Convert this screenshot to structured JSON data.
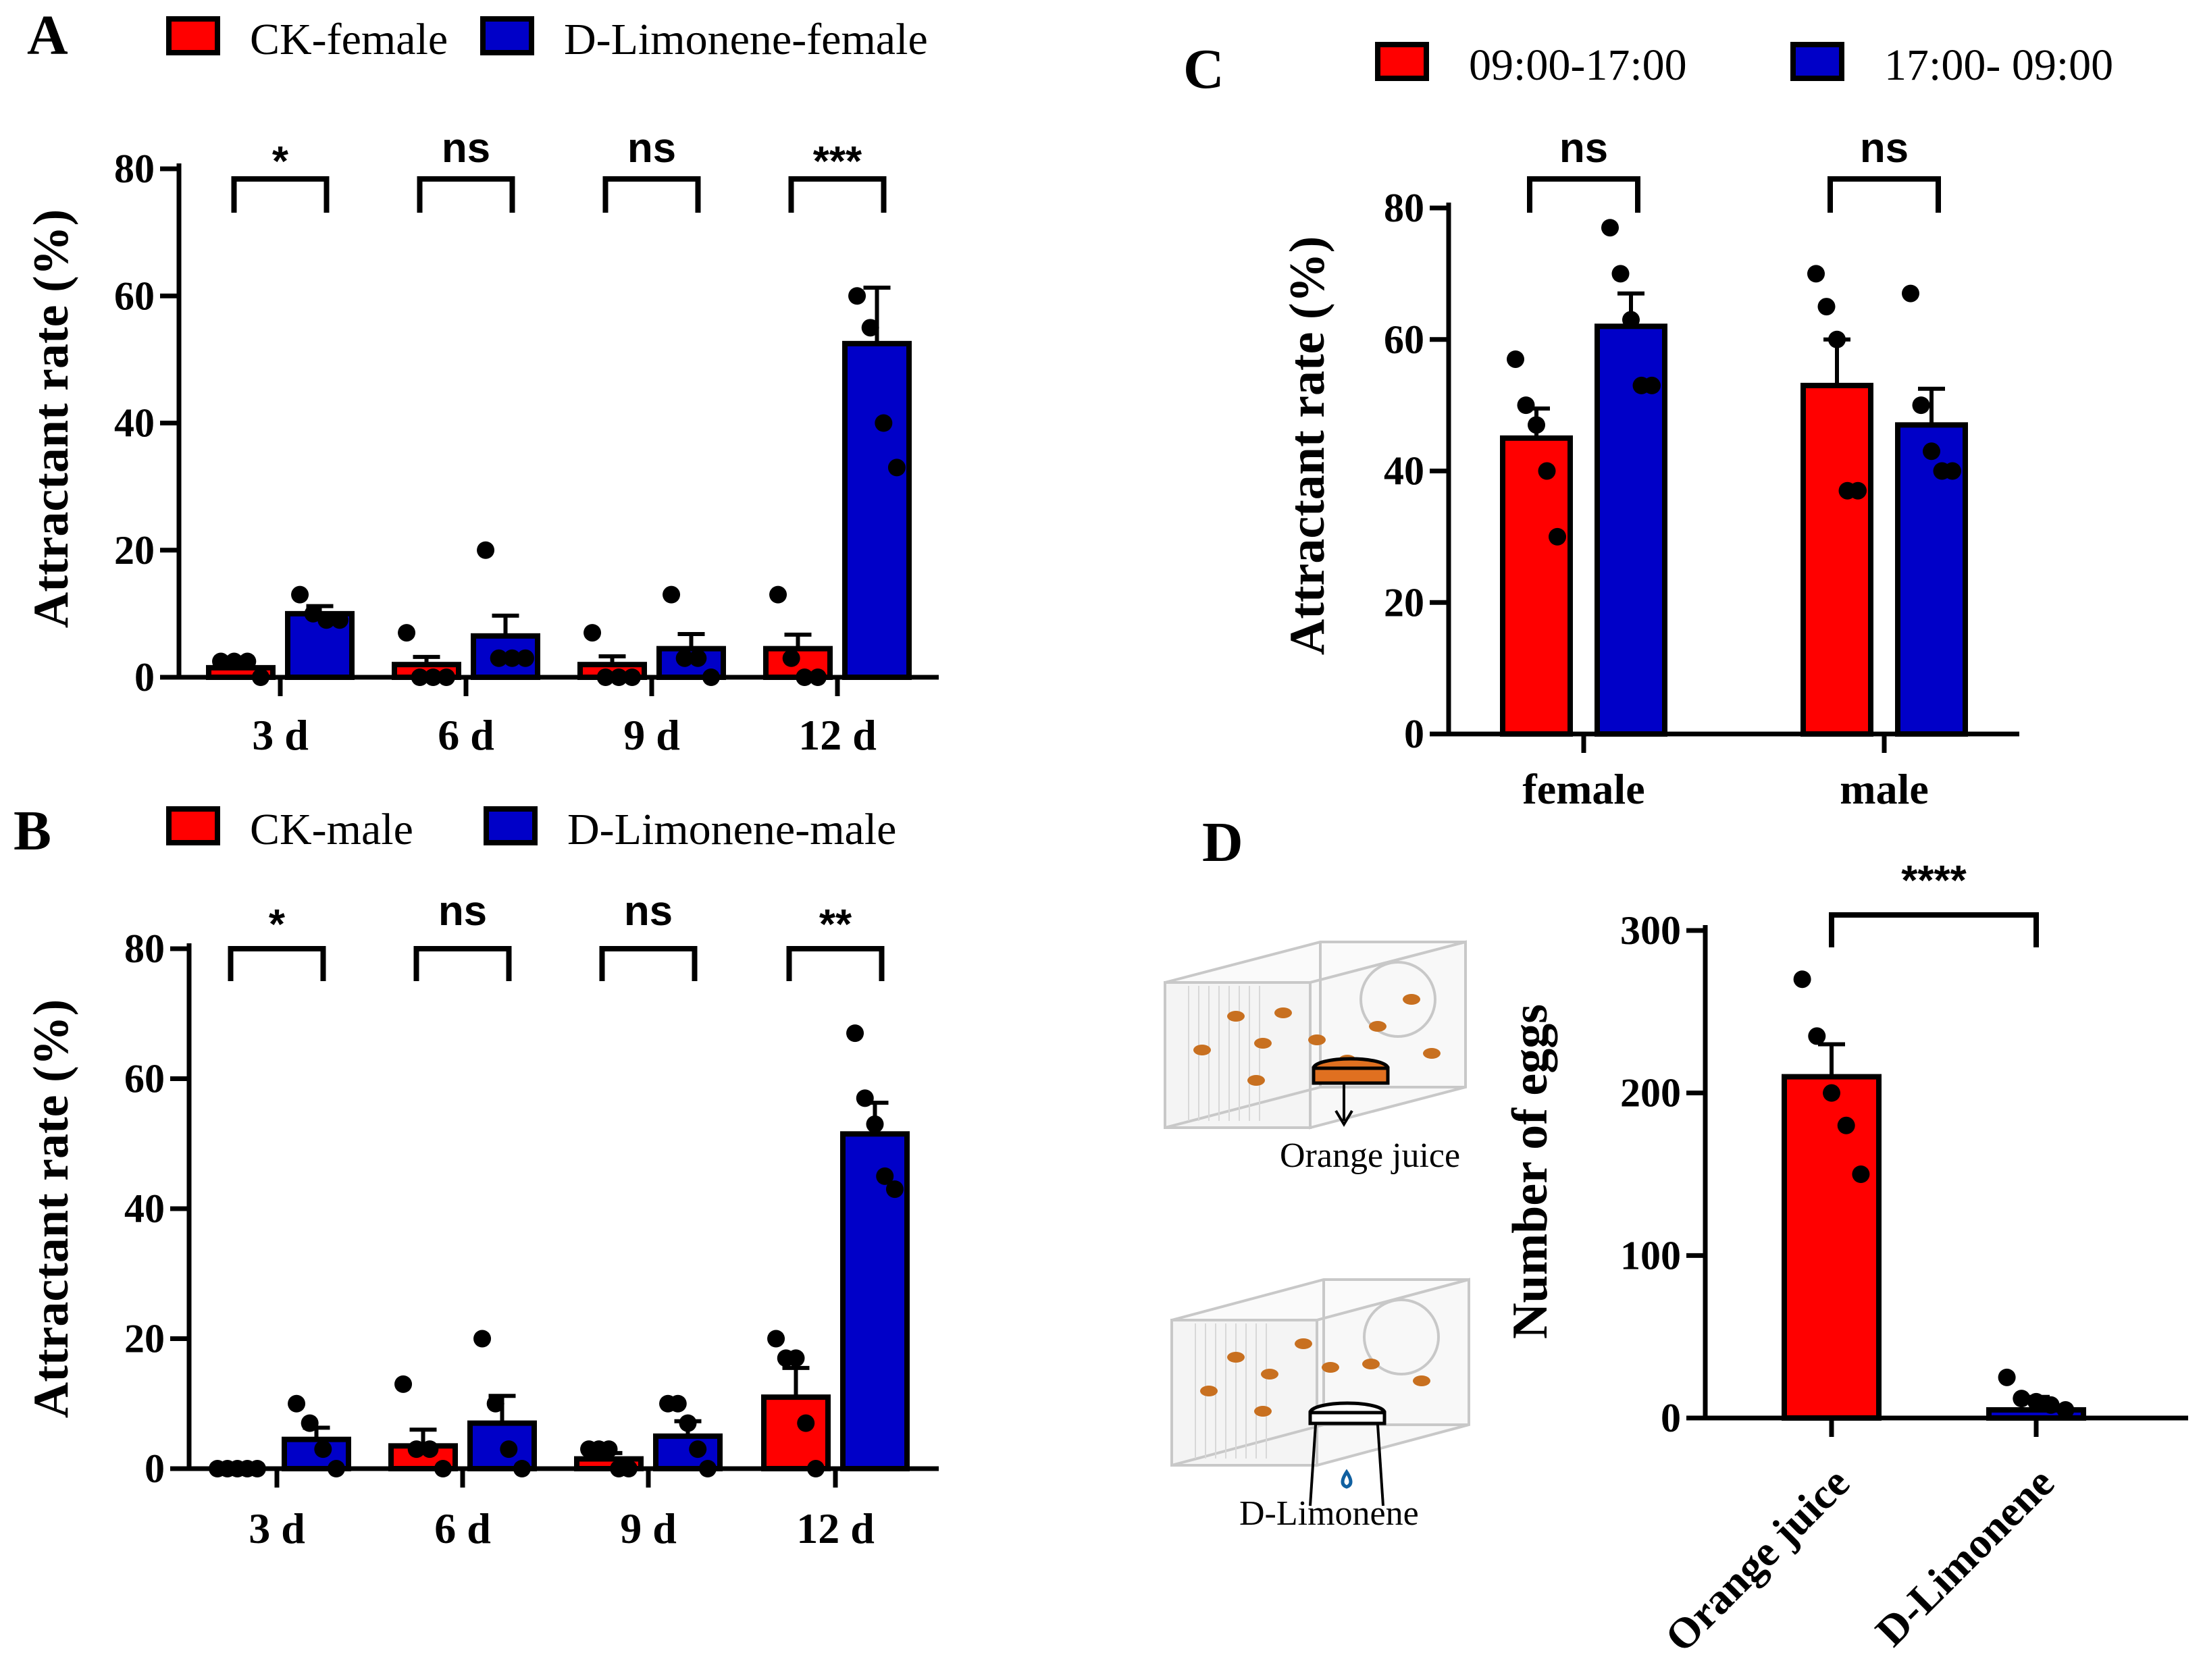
{
  "colors": {
    "red": "#ff0000",
    "blue": "#0000c8",
    "black": "#000000",
    "dot": "#000000"
  },
  "chart_data": [
    {
      "panel": "A",
      "type": "bar",
      "ylabel": "Attractant rate (%)",
      "ylim": [
        0,
        80
      ],
      "yticks": [
        "0",
        "20",
        "40",
        "60",
        "80"
      ],
      "categories": [
        "3 d",
        "6 d",
        "9 d",
        "12 d"
      ],
      "legend": [
        "CK-female",
        "D-Limonene-female"
      ],
      "significance": [
        "*",
        "ns",
        "ns",
        "***"
      ],
      "series": [
        {
          "name": "CK-female",
          "values": [
            1.5,
            2,
            2,
            4.5
          ],
          "errors": [
            0.7,
            1.2,
            1.3,
            2.2
          ],
          "points": [
            [
              2.5,
              2.5,
              2.5,
              0
            ],
            [
              7,
              0,
              0,
              0
            ],
            [
              7,
              0,
              0,
              0
            ],
            [
              13,
              3,
              0,
              0
            ]
          ]
        },
        {
          "name": "D-Limonene-female",
          "values": [
            10,
            6.5,
            4.5,
            52.5
          ],
          "errors": [
            1.2,
            3.2,
            2.3,
            8.8
          ],
          "points": [
            [
              13,
              10,
              9,
              9
            ],
            [
              20,
              3,
              3,
              3
            ],
            [
              13,
              3,
              3,
              0
            ],
            [
              60,
              55,
              40,
              33
            ]
          ]
        }
      ]
    },
    {
      "panel": "B",
      "type": "bar",
      "ylabel": "Attractant rate (%)",
      "ylim": [
        0,
        80
      ],
      "yticks": [
        "0",
        "20",
        "40",
        "60",
        "80"
      ],
      "categories": [
        "3 d",
        "6 d",
        "9 d",
        "12 d"
      ],
      "legend": [
        "CK-male",
        "D-Limonene-male"
      ],
      "significance": [
        "*",
        "ns",
        "ns",
        "**"
      ],
      "series": [
        {
          "name": "CK-male",
          "values": [
            0,
            3.5,
            1.5,
            11
          ],
          "errors": [
            0,
            2.5,
            0.9,
            4.5
          ],
          "points": [
            [
              0,
              0,
              0,
              0,
              0
            ],
            [
              13,
              3,
              3,
              0
            ],
            [
              3,
              3,
              3,
              0,
              0
            ],
            [
              20,
              17,
              17,
              7,
              0
            ]
          ]
        },
        {
          "name": "D-Limonene-male",
          "values": [
            4.5,
            7,
            5,
            51.5
          ],
          "errors": [
            1.8,
            4.2,
            2.3,
            4.8
          ],
          "points": [
            [
              10,
              7,
              3,
              0
            ],
            [
              20,
              10,
              3,
              0
            ],
            [
              10,
              10,
              7,
              3,
              0
            ],
            [
              67,
              57,
              53,
              45,
              43
            ]
          ]
        }
      ]
    },
    {
      "panel": "C",
      "type": "bar",
      "ylabel": "Attractant rate (%)",
      "ylim": [
        0,
        80
      ],
      "yticks": [
        "0",
        "20",
        "40",
        "60",
        "80"
      ],
      "categories": [
        "female",
        "male"
      ],
      "legend": [
        "09:00-17:00",
        "17:00- 09:00"
      ],
      "significance": [
        "ns",
        "ns"
      ],
      "series": [
        {
          "name": "09:00-17:00",
          "values": [
            45,
            53
          ],
          "errors": [
            4.5,
            7
          ],
          "points": [
            [
              57,
              50,
              47,
              40,
              30
            ],
            [
              70,
              65,
              60,
              37,
              37
            ]
          ]
        },
        {
          "name": "17:00- 09:00",
          "values": [
            62,
            47
          ],
          "errors": [
            5,
            5.5
          ],
          "points": [
            [
              77,
              70,
              63,
              53,
              53
            ],
            [
              67,
              50,
              43,
              40,
              40
            ]
          ]
        }
      ]
    },
    {
      "panel": "D",
      "type": "bar",
      "ylabel": "Number of eggs",
      "ylim": [
        0,
        300
      ],
      "yticks": [
        "0",
        "100",
        "200",
        "300"
      ],
      "categories": [
        "Orange juice",
        "D-Limonene"
      ],
      "significance": [
        "****"
      ],
      "series": [
        {
          "name": "eggs",
          "values": [
            210,
            5
          ],
          "errors": [
            20,
            8
          ],
          "points": [
            [
              270,
              235,
              200,
              180,
              150
            ],
            [
              25,
              12,
              10,
              8,
              5
            ]
          ]
        }
      ]
    }
  ],
  "panel_labels": [
    "A",
    "B",
    "C",
    "D"
  ],
  "illustration": {
    "top_label": "Orange juice",
    "bottom_label": "D-Limonene"
  }
}
